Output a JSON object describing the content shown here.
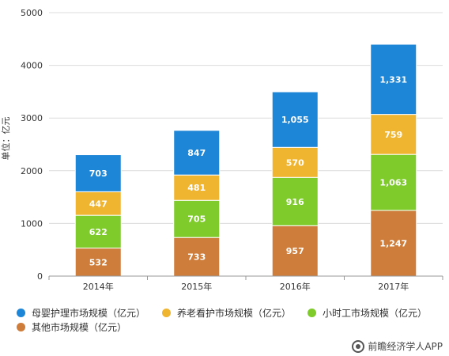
{
  "chart_data": {
    "type": "bar",
    "stacked": true,
    "categories": [
      "2014年",
      "2015年",
      "2016年",
      "2017年"
    ],
    "series": [
      {
        "name": "其他市场规模（亿元）",
        "values": [
          532,
          733,
          957,
          1247
        ],
        "labels": [
          "532",
          "733",
          "957",
          "1,247"
        ],
        "color": "#CF7D3A"
      },
      {
        "name": "小时工市场规模（亿元）",
        "values": [
          622,
          705,
          916,
          1063
        ],
        "labels": [
          "622",
          "705",
          "916",
          "1,063"
        ],
        "color": "#7ECB2B"
      },
      {
        "name": "养老看护市场规模（亿元）",
        "values": [
          447,
          481,
          570,
          759
        ],
        "labels": [
          "447",
          "481",
          "570",
          "759"
        ],
        "color": "#F0B530"
      },
      {
        "name": "母婴护理市场规模（亿元）",
        "values": [
          703,
          847,
          1055,
          1331
        ],
        "labels": [
          "703",
          "847",
          "1,055",
          "1,331"
        ],
        "color": "#1E86D6"
      }
    ],
    "ylabel": "单位：亿元",
    "ylim": [
      0,
      5000
    ],
    "yticks": [
      0,
      1000,
      2000,
      3000,
      4000,
      5000
    ],
    "grid": true,
    "legend_position": "bottom"
  },
  "legend": {
    "items": [
      {
        "label": "母婴护理市场规模（亿元）",
        "color": "#1E86D6"
      },
      {
        "label": "养老看护市场规模（亿元）",
        "color": "#F0B530"
      },
      {
        "label": "小时工市场规模（亿元）",
        "color": "#7ECB2B"
      },
      {
        "label": "其他市场规模（亿元）",
        "color": "#CF7D3A"
      }
    ]
  },
  "watermark": {
    "text": "前瞻经济学人APP",
    "icon": "app-logo-icon"
  }
}
